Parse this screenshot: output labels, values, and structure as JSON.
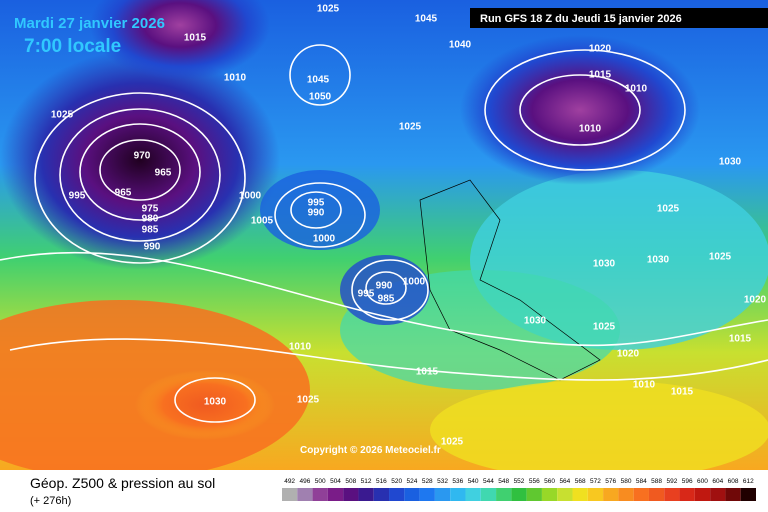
{
  "header": {
    "date": "Mardi 27 janvier 2026",
    "time": "7:00 locale",
    "run": "Run GFS 18 Z du Jeudi 15 janvier 2026"
  },
  "copyright": "Copyright © 2026 Meteociel.fr",
  "footer": {
    "title": "Géop. Z500 & pression au sol",
    "lead": "(+ 276h)"
  },
  "pressure_labels": [
    "1015",
    "1010",
    "1025",
    "970",
    "965",
    "965",
    "995",
    "975",
    "980",
    "985",
    "990",
    "1000",
    "1005",
    "995",
    "990",
    "1000",
    "990",
    "995",
    "985",
    "1000",
    "1025",
    "1045",
    "1040",
    "1045",
    "1050",
    "1025",
    "1020",
    "1015",
    "1010",
    "1010",
    "1030",
    "1025",
    "1030",
    "1030",
    "1025",
    "1020",
    "1030",
    "1025",
    "1015",
    "1020",
    "1010",
    "1015",
    "1010",
    "1015",
    "1030",
    "1025",
    "1025"
  ],
  "legend": {
    "values": [
      492,
      496,
      500,
      504,
      508,
      512,
      516,
      520,
      524,
      528,
      532,
      536,
      540,
      544,
      548,
      552,
      556,
      560,
      564,
      568,
      572,
      576,
      580,
      584,
      588,
      592,
      596,
      600,
      604,
      608,
      612
    ],
    "colors": [
      "#b0b0b0",
      "#a080b0",
      "#904098",
      "#7a1c88",
      "#5a1080",
      "#3a1a90",
      "#2830b0",
      "#2048d0",
      "#1a60e0",
      "#1e78f0",
      "#2a98f0",
      "#30b8f0",
      "#40d0e0",
      "#40d8b0",
      "#40d070",
      "#30c040",
      "#60c830",
      "#98d828",
      "#c8e030",
      "#f0e020",
      "#f8c820",
      "#f8a820",
      "#f88c20",
      "#f87020",
      "#f05a20",
      "#e84020",
      "#d82818",
      "#c01810",
      "#a01010",
      "#700808",
      "#200000"
    ]
  }
}
